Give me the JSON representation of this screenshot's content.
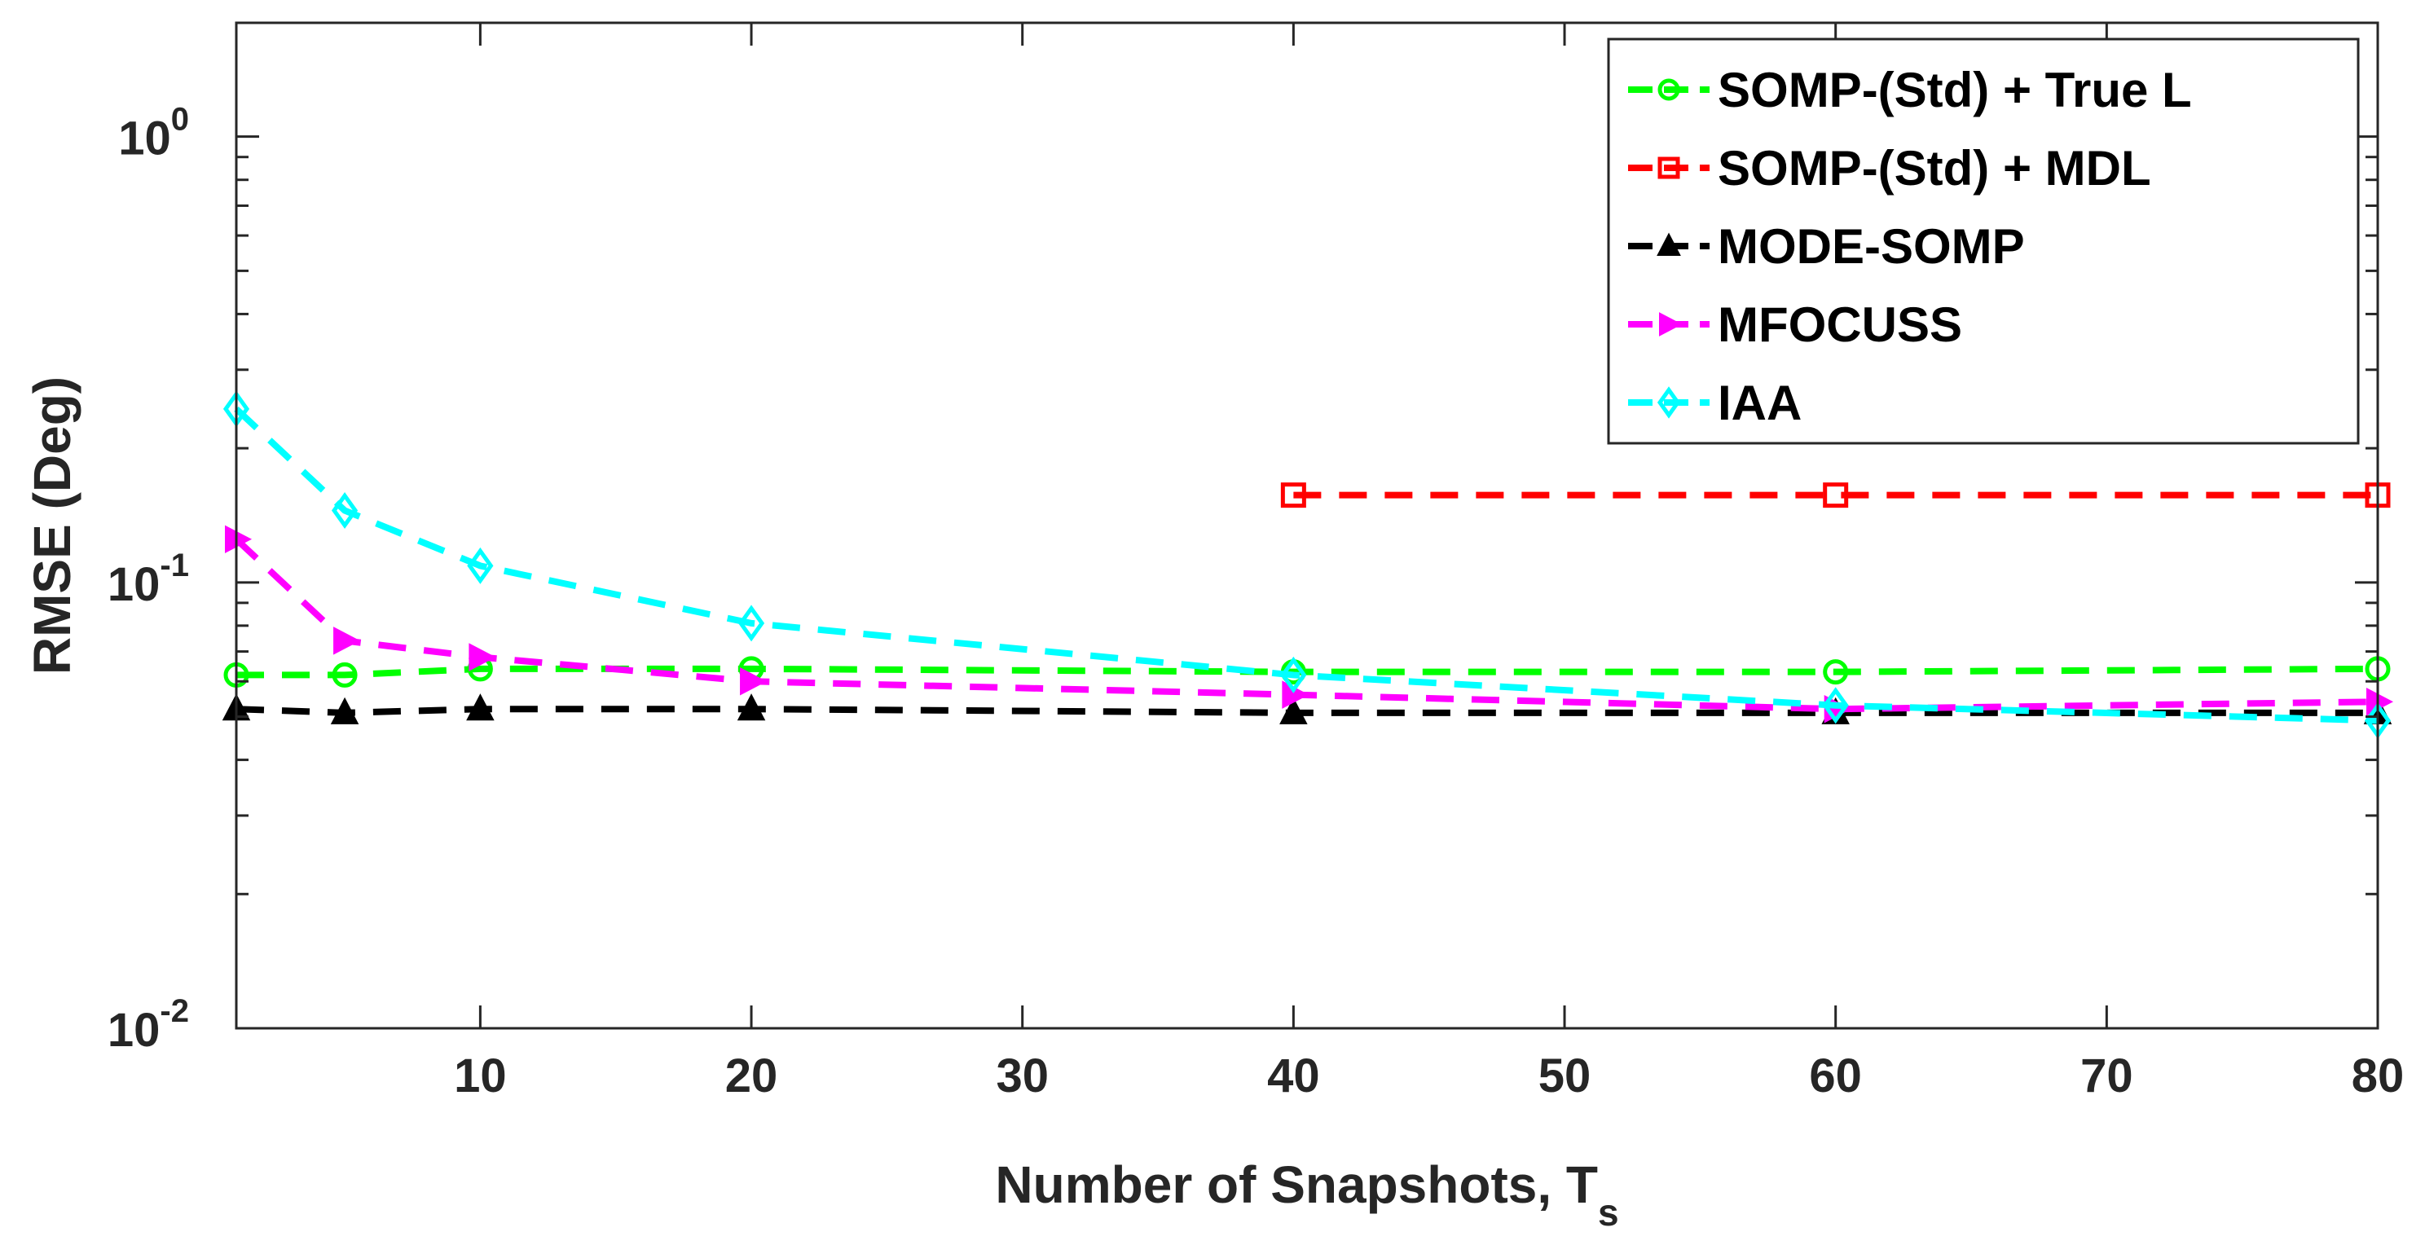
{
  "chart_data": {
    "type": "line",
    "title": "",
    "xlabel": "Number of Snapshots, T",
    "xlabel_subscript": "s",
    "ylabel": "RMSE (Deg)",
    "xlim": [
      1,
      80
    ],
    "ylim": [
      0.01,
      1.8
    ],
    "yscale": "log",
    "grid": false,
    "legend_position": "top-right",
    "x_ticks": [
      10,
      20,
      30,
      40,
      50,
      60,
      70,
      80
    ],
    "x_tick_labels": [
      "10",
      "20",
      "30",
      "40",
      "50",
      "60",
      "70",
      "80"
    ],
    "y_ticks": [
      {
        "value": 1,
        "base": "10",
        "exp": "0"
      },
      {
        "value": 0.1,
        "base": "10",
        "exp": "-1"
      },
      {
        "value": 0.01,
        "base": "10",
        "exp": "-2"
      }
    ],
    "series": [
      {
        "name": "SOMP-(Std) + True L",
        "color": "#00ff00",
        "marker": "circle",
        "x": [
          1,
          5,
          10,
          20,
          40,
          60,
          80
        ],
        "y": [
          0.062,
          0.062,
          0.064,
          0.064,
          0.063,
          0.063,
          0.064
        ]
      },
      {
        "name": "SOMP-(Std) + MDL",
        "color": "#ff0000",
        "marker": "square",
        "x": [
          40,
          60,
          80
        ],
        "y": [
          0.157,
          0.157,
          0.157
        ]
      },
      {
        "name": "MODE-SOMP",
        "color": "#000000",
        "marker": "triangle-up",
        "x": [
          1,
          5,
          10,
          20,
          40,
          60,
          80
        ],
        "y": [
          0.052,
          0.051,
          0.052,
          0.052,
          0.051,
          0.051,
          0.051
        ]
      },
      {
        "name": "MFOCUSS",
        "color": "#ff00ff",
        "marker": "triangle-right",
        "x": [
          1,
          5,
          10,
          20,
          40,
          60,
          80
        ],
        "y": [
          0.125,
          0.074,
          0.068,
          0.06,
          0.056,
          0.052,
          0.054
        ]
      },
      {
        "name": "IAA",
        "color": "#00ffff",
        "marker": "diamond",
        "x": [
          1,
          5,
          10,
          20,
          40,
          60,
          80
        ],
        "y": [
          0.245,
          0.145,
          0.109,
          0.081,
          0.062,
          0.053,
          0.049
        ]
      }
    ]
  }
}
